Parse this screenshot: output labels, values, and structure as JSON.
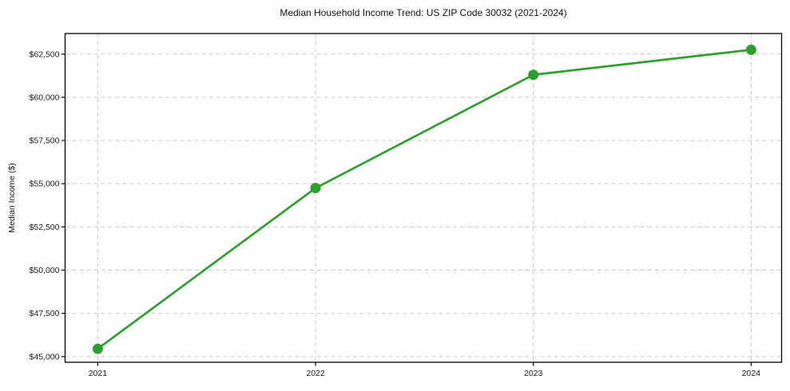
{
  "figure": {
    "background": "#ffffff"
  },
  "chart_data": {
    "type": "line",
    "title": "Median Household Income Trend: US ZIP Code 30032 (2021-2024)",
    "xlabel": "",
    "ylabel": "Median Income ($)",
    "x": [
      2021,
      2022,
      2023,
      2024
    ],
    "x_tick_labels": [
      "2021",
      "2022",
      "2023",
      "2024"
    ],
    "values": [
      45450,
      54750,
      61300,
      62750
    ],
    "y_ticks": [
      45000,
      47500,
      50000,
      52500,
      55000,
      57500,
      60000,
      62500
    ],
    "y_tick_labels": [
      "$45,000",
      "$47,500",
      "$50,000",
      "$52,500",
      "$55,000",
      "$57,500",
      "$60,000",
      "$62,500"
    ],
    "xlim": [
      2020.85,
      2024.14
    ],
    "ylim": [
      44670,
      63690
    ],
    "grid": true,
    "grid_style": "dashed",
    "legend": "none",
    "line_color": "#2ca02c",
    "marker": "circle",
    "marker_size": 6.5,
    "line_width": 2.7,
    "grid_color": "#c9c9c9",
    "axis_color": "#000000",
    "text_color": "#1a1a1a"
  }
}
